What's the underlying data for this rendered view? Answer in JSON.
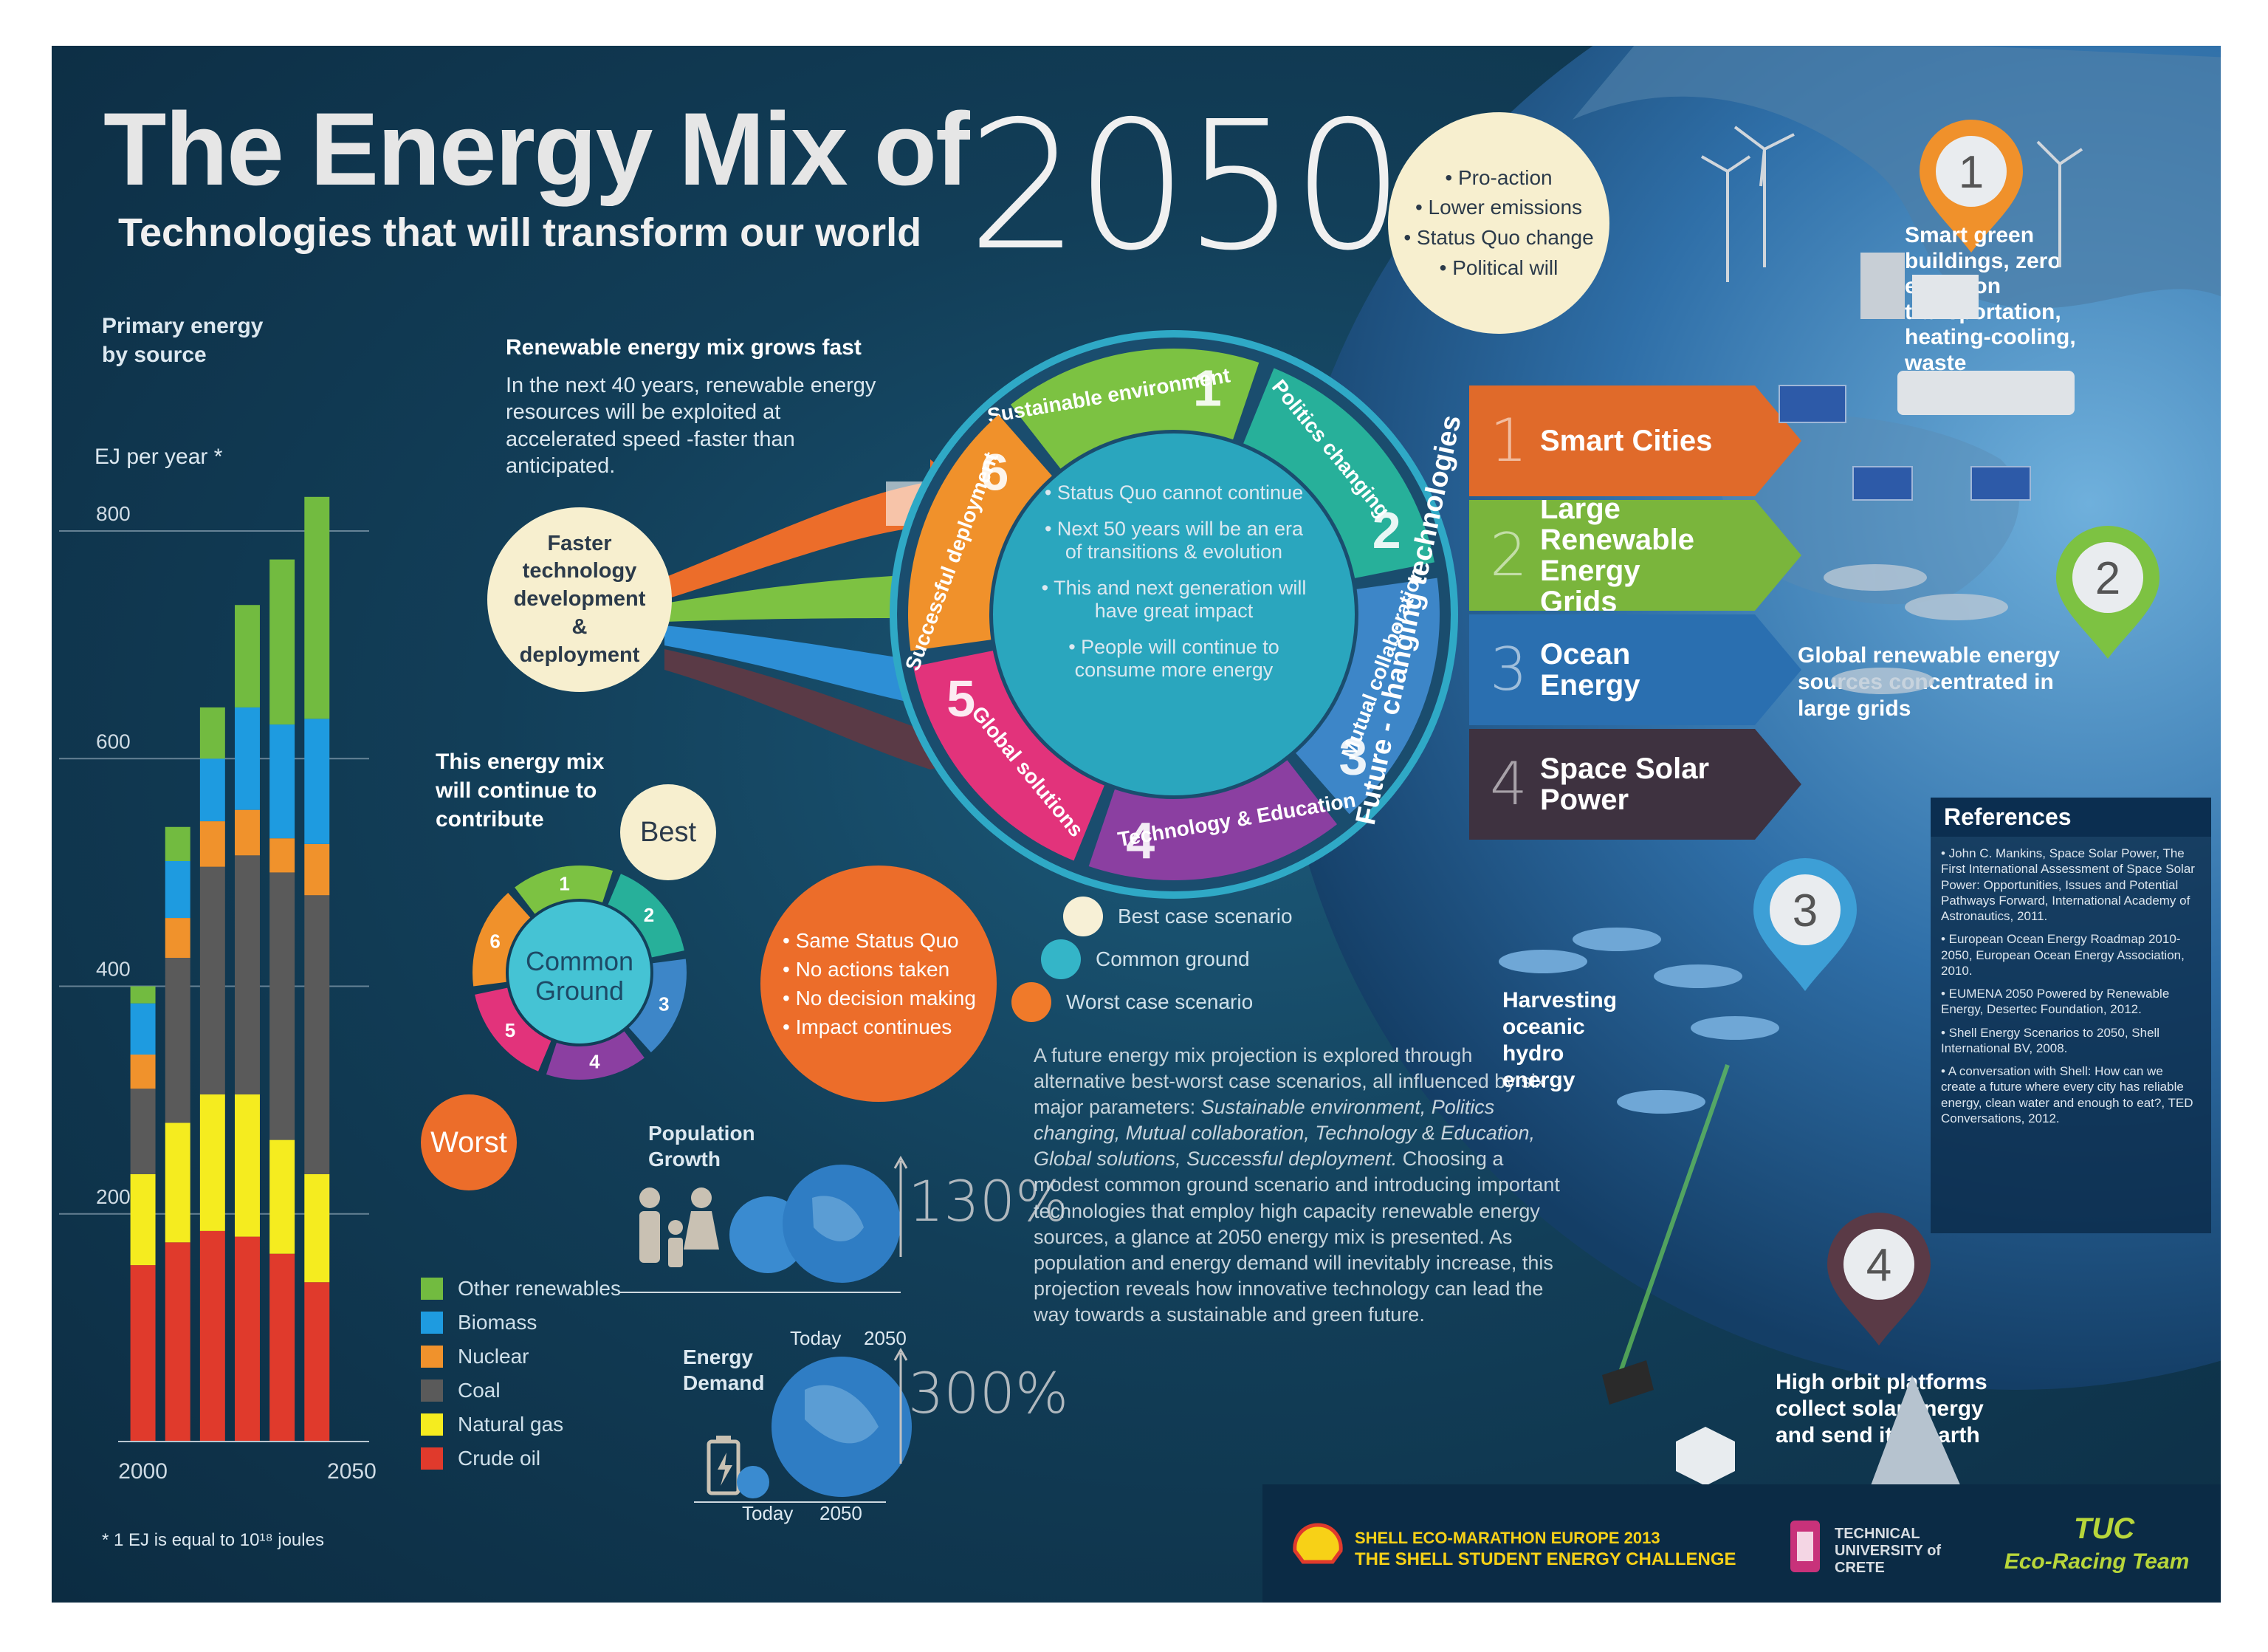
{
  "header": {
    "title": "The Energy Mix of",
    "year": "2050",
    "subtitle": "Technologies that will transform our world"
  },
  "chart_data": {
    "type": "bar",
    "title": "Primary energy by source",
    "ylabel": "EJ per year *",
    "ylim": [
      0,
      850
    ],
    "yticks": [
      200,
      400,
      600,
      800
    ],
    "xticks": [
      "2000",
      "2050"
    ],
    "footnote": "* 1 EJ is equal to 10¹⁸ joules",
    "categories": [
      "2000",
      "",
      "",
      "",
      "",
      "",
      "2050"
    ],
    "series": [
      {
        "name": "Crude oil",
        "color": "#e03a2c",
        "values": [
          155,
          175,
          185,
          180,
          165,
          140,
          0
        ]
      },
      {
        "name": "Natural gas",
        "color": "#f5ec1f",
        "values": [
          80,
          105,
          120,
          125,
          100,
          95,
          0
        ]
      },
      {
        "name": "Coal",
        "color": "#5a5a5a",
        "values": [
          75,
          145,
          200,
          210,
          235,
          245,
          0
        ]
      },
      {
        "name": "Nuclear",
        "color": "#f0922c",
        "values": [
          30,
          35,
          40,
          40,
          30,
          45,
          0
        ]
      },
      {
        "name": "Biomass",
        "color": "#1e9be0",
        "values": [
          45,
          50,
          55,
          90,
          100,
          110,
          0
        ]
      },
      {
        "name": "Other renewables",
        "color": "#72bb40",
        "values": [
          15,
          30,
          45,
          90,
          145,
          195,
          0
        ]
      }
    ]
  },
  "legend": [
    {
      "label": "Other renewables",
      "color": "#72bb40"
    },
    {
      "label": "Biomass",
      "color": "#1e9be0"
    },
    {
      "label": "Nuclear",
      "color": "#f0922c"
    },
    {
      "label": "Coal",
      "color": "#5a5a5a"
    },
    {
      "label": "Natural gas",
      "color": "#f5ec1f"
    },
    {
      "label": "Crude oil",
      "color": "#e03a2c"
    }
  ],
  "renewable": {
    "heading": "Renewable energy mix grows fast",
    "body": "In the next 40 years, renewable energy resources will be exploited at accelerated speed -faster than anticipated."
  },
  "faster_bubble": "Faster technology development & deployment",
  "pro_action": [
    "• Pro-action",
    "• Lower emissions",
    "• Status Quo change",
    "• Political will"
  ],
  "cycle": {
    "segments": [
      {
        "num": "1",
        "label": "Sustainable environment",
        "color": "#7cc242"
      },
      {
        "num": "2",
        "label": "Politics changing",
        "color": "#27b09a"
      },
      {
        "num": "3",
        "label": "Mutual collaboration",
        "color": "#3d86c8"
      },
      {
        "num": "4",
        "label": "Technology & Education",
        "color": "#8b3fa1"
      },
      {
        "num": "5",
        "label": "Global solutions",
        "color": "#e2337b"
      },
      {
        "num": "6",
        "label": "Successful deployment",
        "color": "#f0912b"
      }
    ],
    "center": [
      "• Status Quo cannot continue",
      "• Next 50 years will be an era of transitions & evolution",
      "• This and next generation will have great impact",
      "• People will continue to consume more energy"
    ],
    "ring_label": "Future - changing technologies"
  },
  "technologies": [
    {
      "num": "1",
      "label": "Smart Cities",
      "color": "#e06a2a"
    },
    {
      "num": "2",
      "label": "Large Renewable Energy Grids",
      "color": "#7ab53c"
    },
    {
      "num": "3",
      "label": "Ocean Energy",
      "color": "#2a6fb0"
    },
    {
      "num": "4",
      "label": "Space Solar Power",
      "color": "#3e3240"
    }
  ],
  "contribute": {
    "text": "This energy mix will continue to contribute",
    "best": "Best",
    "worst": "Worst",
    "common_ground": "Common Ground",
    "mini_nums": [
      "1",
      "2",
      "3",
      "4",
      "5",
      "6"
    ]
  },
  "worst_bubble": [
    "• Same Status Quo",
    "• No actions taken",
    "• No decision making",
    "• Impact continues"
  ],
  "scenarios": [
    {
      "label": "Best case scenario",
      "color": "#f7f0d6"
    },
    {
      "label": "Common ground",
      "color": "#34b5c8"
    },
    {
      "label": "Worst case scenario",
      "color": "#f07a2a"
    }
  ],
  "population": {
    "label": "Population Growth",
    "pct": "130%",
    "today": "Today",
    "year": "2050"
  },
  "energy_demand": {
    "label": "Energy Demand",
    "pct": "300%",
    "today": "Today",
    "year": "2050"
  },
  "future_text": {
    "intro": "A future energy mix projection is explored through alternative best-worst case scenarios, all influenced by six major parameters: ",
    "params": "Sustainable environment, Politics changing, Mutual collaboration, Technology & Education, Global solutions, Successful deployment.",
    "rest": "Choosing a modest common ground scenario and introducing important technologies that employ high capacity renewable energy sources, a glance at 2050 energy mix is presented. As population and energy demand will inevitably increase, this projection reveals how innovative technology can lead the way towards a sustainable and green future."
  },
  "map": {
    "pins": [
      "1",
      "2",
      "3",
      "4"
    ],
    "cap1": "Smart green buildings, zero emission transportation, heating-cooling, waste management",
    "cap2": "Global renewable energy sources concentrated in large grids",
    "cap3": "Harvesting oceanic hydro energy",
    "cap4": "High orbit platforms collect solar energy and send it to earth"
  },
  "references": {
    "title": "References",
    "items": [
      "• John C. Mankins, Space Solar Power, The First International Assessment of Space Solar Power: Opportunities, Issues and Potential Pathways Forward, International Academy of Astronautics, 2011.",
      "• European Ocean Energy Roadmap 2010-2050, European Ocean Energy Association, 2010.",
      "• EUMENA 2050 Powered by Renewable Energy, Desertec Foundation, 2012.",
      "• Shell Energy Scenarios to 2050, Shell International BV, 2008.",
      "• A conversation with Shell: How can we create a future where every city has reliable energy, clean water and enough to eat?, TED Conversations, 2012."
    ]
  },
  "footer": {
    "shell_line1": "SHELL ECO-MARATHON EUROPE 2013",
    "shell_line2": "THE SHELL STUDENT ENERGY CHALLENGE",
    "tuc": "TECHNICAL UNIVERSITY of CRETE",
    "team_line1": "TUC",
    "team_line2": "Eco-Racing Team"
  }
}
